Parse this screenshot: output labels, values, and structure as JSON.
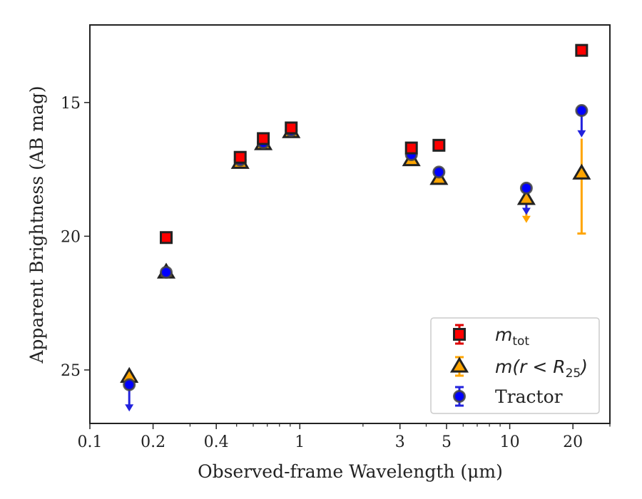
{
  "chart_data": {
    "type": "scatter",
    "xlabel": "Observed-frame Wavelength (μm)",
    "ylabel": "Apparent Brightness (AB mag)",
    "x_scale": "log",
    "xlim": [
      0.1,
      30
    ],
    "ylim": [
      27.0,
      12.1
    ],
    "y_inverted": true,
    "x_ticks": [
      0.1,
      0.2,
      0.4,
      1,
      3,
      5,
      10,
      20
    ],
    "x_tick_labels": [
      "0.1",
      "0.2",
      "0.4",
      "1",
      "3",
      "5",
      "10",
      "20"
    ],
    "y_ticks": [
      15,
      20,
      25
    ],
    "y_tick_labels": [
      "15",
      "20",
      "25"
    ],
    "grid": false,
    "legend_position": "lower-right",
    "series": [
      {
        "name": "m_tot",
        "legend_label": {
          "main": "m",
          "sub": "tot"
        },
        "marker": "square",
        "fill": "#ff0000",
        "edge": "#222222",
        "errcolor": "#dd0000",
        "points": [
          {
            "x": 0.231,
            "y": 20.05
          },
          {
            "x": 0.52,
            "y": 17.05
          },
          {
            "x": 0.67,
            "y": 16.35
          },
          {
            "x": 0.91,
            "y": 15.95
          },
          {
            "x": 3.4,
            "y": 16.7
          },
          {
            "x": 4.6,
            "y": 16.6
          },
          {
            "x": 22.0,
            "y": 13.05
          }
        ]
      },
      {
        "name": "m(r < R_25)",
        "legend_label": {
          "main": "m(r < R",
          "sub": "25",
          "tail": ")"
        },
        "marker": "triangle",
        "fill": "#ffa500",
        "edge": "#222222",
        "errcolor": "#ffa500",
        "points": [
          {
            "x": 0.154,
            "y": 25.25
          },
          {
            "x": 0.231,
            "y": 21.35
          },
          {
            "x": 0.52,
            "y": 17.25
          },
          {
            "x": 0.67,
            "y": 16.55
          },
          {
            "x": 0.91,
            "y": 16.1
          },
          {
            "x": 3.4,
            "y": 17.15
          },
          {
            "x": 4.6,
            "y": 17.85
          },
          {
            "x": 12.0,
            "y": 18.6,
            "upper_limit_to": 19.45
          },
          {
            "x": 22.0,
            "y": 17.65,
            "err_low": 16.35,
            "err_high": 19.9
          }
        ]
      },
      {
        "name": "Tractor",
        "legend_label": {
          "main": "Tractor"
        },
        "marker": "circle",
        "fill": "#0000ff",
        "edge": "#444444",
        "errcolor": "#2222dd",
        "points": [
          {
            "x": 0.154,
            "y": 25.55,
            "upper_limit_to": 26.5
          },
          {
            "x": 0.231,
            "y": 21.35
          },
          {
            "x": 0.52,
            "y": 17.15
          },
          {
            "x": 0.67,
            "y": 16.5
          },
          {
            "x": 0.91,
            "y": 16.05
          },
          {
            "x": 3.4,
            "y": 16.95
          },
          {
            "x": 4.6,
            "y": 17.6
          },
          {
            "x": 12.0,
            "y": 18.2,
            "upper_limit_to": 19.15
          },
          {
            "x": 22.0,
            "y": 15.3,
            "upper_limit_to": 16.25
          }
        ]
      }
    ]
  }
}
